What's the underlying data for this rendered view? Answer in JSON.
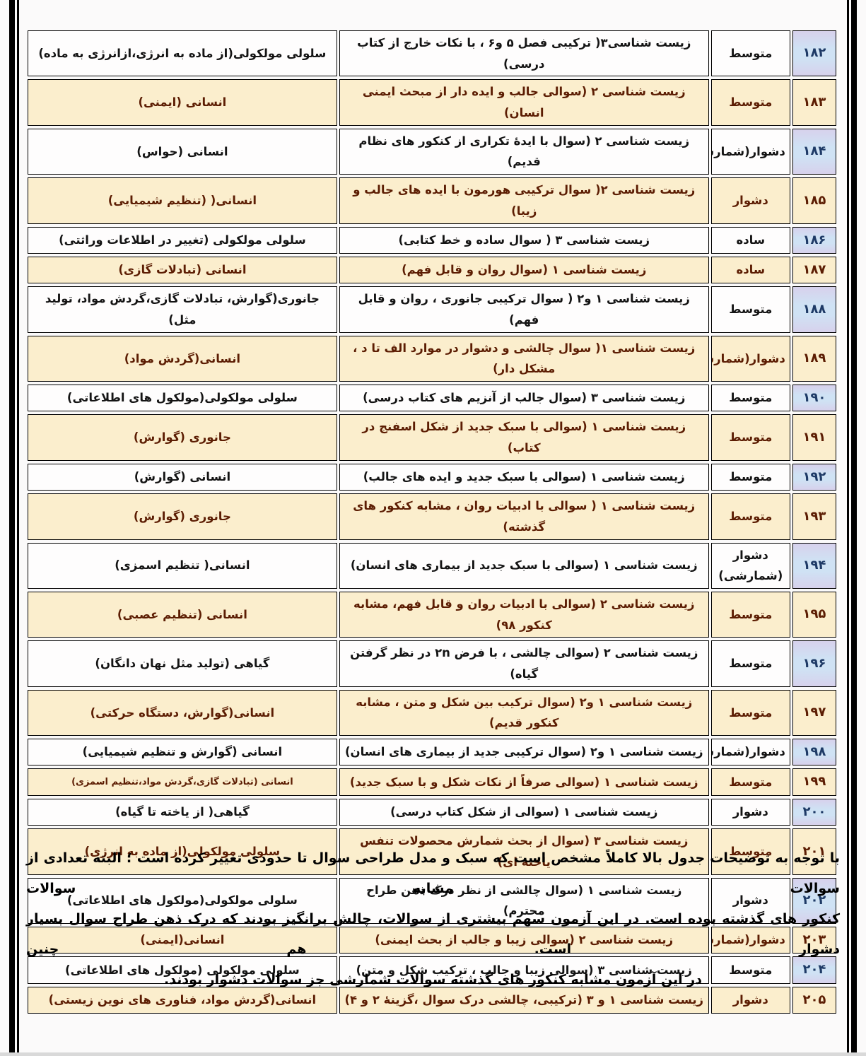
{
  "colors": {
    "page_background": "#fbfafa",
    "frame": "#000000",
    "row_background": "#fefdfd",
    "row_highlight_background": "#fbeecd",
    "row_text": "#141414",
    "row_highlight_text": "#5c1d03",
    "number_cell_blue": "#cfe2f4",
    "number_cell_lavender": "#d7d1ec",
    "number_text": "#1e3a66",
    "cell_border": "#000000",
    "bottom_strip": "#d9d9d9"
  },
  "table": {
    "rows": [
      {
        "number": "۱۸۲",
        "difficulty": "متوسط",
        "question": "زیست شناسی۳( ترکیبی فصل ۵ و۶ ، با نکات خارج از کتاب درسی)",
        "topic": "سلولی مولکولی(از ماده به انرژی،ازانرژی به ماده)",
        "highlighted": false
      },
      {
        "number": "۱۸۳",
        "difficulty": "متوسط",
        "question": "زیست شناسی ۲ (سوالی جالب و ایده دار از مبحث ایمنی انسان)",
        "topic": "انسانی (ایمنی)",
        "highlighted": true
      },
      {
        "number": "۱۸۴",
        "difficulty": "دشوار(شمارشی)",
        "question": "زیست شناسی ۲ (سوال با ایدۀ تکراری از کنکور های نظام قدیم)",
        "topic": "انسانی (حواس)",
        "highlighted": false
      },
      {
        "number": "۱۸۵",
        "difficulty": "دشوار",
        "question": "زیست شناسی ۲( سوال ترکیبی هورمون با ایده های جالب و زیبا)",
        "topic": "انسانی( (تنظیم شیمیایی)",
        "highlighted": true
      },
      {
        "number": "۱۸۶",
        "difficulty": "ساده",
        "question": "زیست شناسی ۳ ( سوال ساده و خط کتابی)",
        "topic": "سلولی مولکولی (تغییر در اطلاعات وراثتی)",
        "highlighted": false
      },
      {
        "number": "۱۸۷",
        "difficulty": "ساده",
        "question": "زیست شناسی ۱ (سوال روان و قابل فهم)",
        "topic": "انسانی (تبادلات گازی)",
        "highlighted": true
      },
      {
        "number": "۱۸۸",
        "difficulty": "متوسط",
        "question": "زیست شناسی ۱ و۲ ( سوال ترکیبی جانوری ، روان و قابل فهم)",
        "topic": "جانوری(گوارش، تبادلات گازی،گردش مواد، تولید مثل)",
        "highlighted": false
      },
      {
        "number": "۱۸۹",
        "difficulty": "دشوار(شمارشی)",
        "question": "زیست شناسی ۱( سوال چالشی و دشوار در موارد الف تا د ، مشکل دار)",
        "topic": "انسانی(گردش مواد)",
        "highlighted": true
      },
      {
        "number": "۱۹۰",
        "difficulty": "متوسط",
        "question": "زیست شناسی ۳ (سوال جالب از آنزیم های کتاب درسی)",
        "topic": "سلولی مولکولی(مولکول های اطلاعاتی)",
        "highlighted": false
      },
      {
        "number": "۱۹۱",
        "difficulty": "متوسط",
        "question": "زیست شناسی ۱ (سوالی با سبک جدید از شکل اسفنج در کتاب)",
        "topic": "جانوری (گوارش)",
        "highlighted": true
      },
      {
        "number": "۱۹۲",
        "difficulty": "متوسط",
        "question": "زیست شناسی ۱ (سوالی با سبک جدید و ایده های جالب)",
        "topic": "انسانی (گوارش)",
        "highlighted": false
      },
      {
        "number": "۱۹۳",
        "difficulty": "متوسط",
        "question": "زیست شناسی ۱ ( سوالی با ادبیات روان ، مشابه کنکور های گذشته)",
        "topic": "جانوری (گوارش)",
        "highlighted": true
      },
      {
        "number": "۱۹۴",
        "difficulty": "دشوار (شمارشی)",
        "question": "زیست شناسی ۱ (سوالی با سبک جدید از بیماری های انسان)",
        "topic": "انسانی( تنظیم اسمزی)",
        "highlighted": false
      },
      {
        "number": "۱۹۵",
        "difficulty": "متوسط",
        "question": "زیست شناسی ۲ (سوالی با ادبیات روان و قابل فهم، مشابه کنکور ۹۸)",
        "topic": "انسانی (تنظیم عصبی)",
        "highlighted": true
      },
      {
        "number": "۱۹۶",
        "difficulty": "متوسط",
        "question": "زیست شناسی ۲ (سوالی چالشی ، با فرض ۲n در نظر گرفتن گیاه)",
        "topic": "گیاهی (تولید مثل نهان دانگان)",
        "highlighted": false
      },
      {
        "number": "۱۹۷",
        "difficulty": "متوسط",
        "question": "زیست شناسی ۱ و۲ (سوال ترکیب بین شکل و متن ، مشابه کنکور قدیم)",
        "topic": "انسانی(گوارش، دستگاه حرکتی)",
        "highlighted": true
      },
      {
        "number": "۱۹۸",
        "difficulty": "دشوار(شمارشی)",
        "question": "زیست شناسی ۱ و۲ (سوال ترکیبی جدید از بیماری های انسان)",
        "topic": "انسانی (گوارش و تنظیم شیمیایی)",
        "highlighted": false
      },
      {
        "number": "۱۹۹",
        "difficulty": "متوسط",
        "question": "زیست شناسی ۱ (سوالی صرفاً از نکات شکل و با سبک جدید)",
        "topic": "انسانی (تبادلات گازی،گردش مواد،تنظیم اسمزی)",
        "highlighted": true,
        "topic_small": true
      },
      {
        "number": "۲۰۰",
        "difficulty": "دشوار",
        "question": "زیست شناسی ۱ (سوالی از شکل کتاب درسی)",
        "topic": "گیاهی( از یاخته تا گیاه)",
        "highlighted": false
      },
      {
        "number": "۲۰۱",
        "difficulty": "متوسط",
        "question": "زیست شناسی ۳ (سوال از بحث شمارش محصولات تنفس یاخته ای)",
        "topic": "سلولی مولکولی(از ماده به انرژی)",
        "highlighted": true
      },
      {
        "number": "۲۰۲",
        "difficulty": "دشوار",
        "question": "زیست شناسی ۱ (سوال چالشی از نظر درک ذهن طراح محترم)",
        "topic": "سلولی مولکولی(مولکول های اطلاعاتی)",
        "highlighted": false
      },
      {
        "number": "۲۰۳",
        "difficulty": "دشوار(شمارشی)",
        "question": "زیست شناسی ۲ (سوالی زیبا و جالب از بحث ایمنی)",
        "topic": "انسانی(ایمنی)",
        "highlighted": true
      },
      {
        "number": "۲۰۴",
        "difficulty": "متوسط",
        "question": "زیست شناسی ۳ (سوالی زیبا و جالب ، ترکیب شکل و متن)",
        "topic": "سلولی مولکولی (مولکول های اطلاعاتی)",
        "highlighted": false
      },
      {
        "number": "۲۰۵",
        "difficulty": "دشوار",
        "question": "زیست شناسی ۱ و ۳ (ترکیبی، چالشی درک سوال ،گزینۀ ۲ و ۴)",
        "topic": "انسانی(گردش مواد، فناوری های نوین زیستی)",
        "highlighted": true
      }
    ]
  },
  "footer": {
    "lines": [
      "با توجه به توضیحات جدول بالا کاملاً مشخص است که سبک و مدل طراحی سوال تا حدودی تغییر کرده است ؛ البته تعدادی از سوالات مشابه سوالات",
      "کنکور های گذشته بوده است. در این آزمون سهم بیشتری از سوالات، چالش برانگیز بودند که درک ذهن طراح سوال بسیار دشوار است. هم چنین",
      "در این آزمون مشابه کنکور های گذشته سوالات شمارشی جز سوالات دشوار بودند."
    ]
  }
}
